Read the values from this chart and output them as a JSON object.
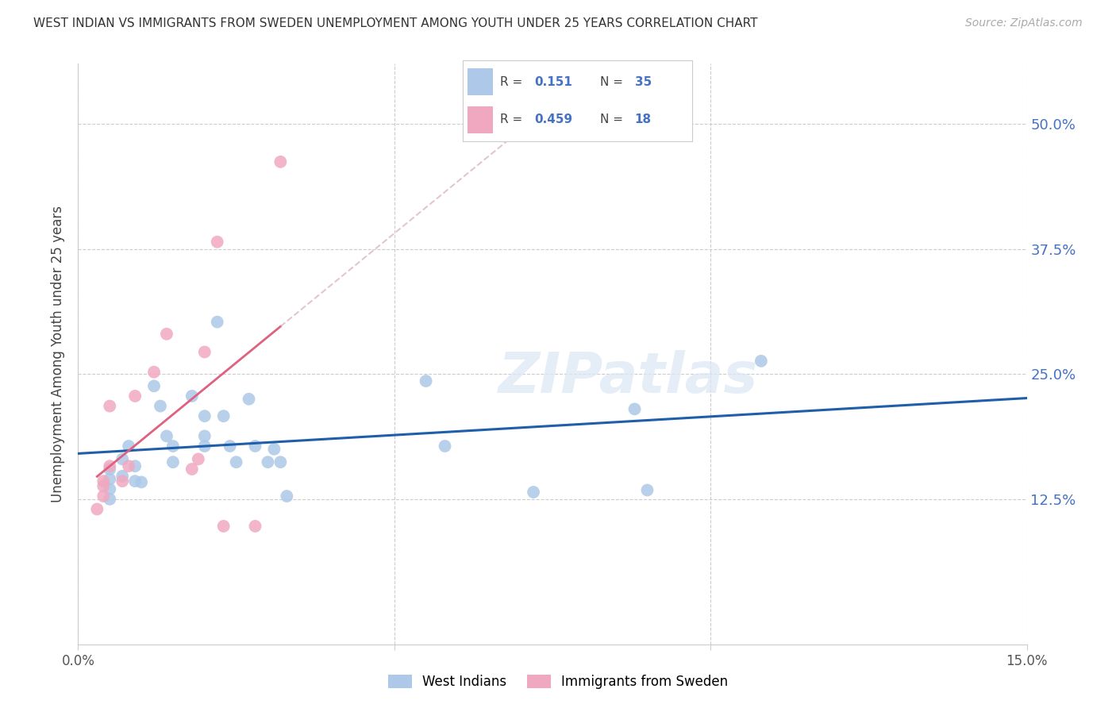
{
  "title": "WEST INDIAN VS IMMIGRANTS FROM SWEDEN UNEMPLOYMENT AMONG YOUTH UNDER 25 YEARS CORRELATION CHART",
  "source": "Source: ZipAtlas.com",
  "ylabel": "Unemployment Among Youth under 25 years",
  "watermark": "ZIPatlas",
  "legend_r_blue": "0.151",
  "legend_n_blue": "35",
  "legend_r_pink": "0.459",
  "legend_n_pink": "18",
  "blue_color": "#adc8e8",
  "pink_color": "#f0a8c0",
  "blue_line_color": "#1f5faa",
  "pink_line_color": "#e06080",
  "pink_line_dash_color": "#d0a0b0",
  "right_tick_color": "#4472c4",
  "xlim": [
    0.0,
    0.15
  ],
  "ylim": [
    -0.02,
    0.56
  ],
  "ytick_positions": [
    0.125,
    0.25,
    0.375,
    0.5
  ],
  "ytick_labels": [
    "12.5%",
    "25.0%",
    "37.5%",
    "50.0%"
  ],
  "xtick_positions": [
    0.0,
    0.05,
    0.1,
    0.15
  ],
  "xtick_labels": [
    "0.0%",
    "",
    "",
    "15.0%"
  ],
  "blue_scatter": [
    [
      0.005,
      0.155
    ],
    [
      0.005,
      0.145
    ],
    [
      0.005,
      0.135
    ],
    [
      0.005,
      0.125
    ],
    [
      0.007,
      0.165
    ],
    [
      0.007,
      0.148
    ],
    [
      0.008,
      0.178
    ],
    [
      0.009,
      0.158
    ],
    [
      0.009,
      0.143
    ],
    [
      0.01,
      0.142
    ],
    [
      0.012,
      0.238
    ],
    [
      0.013,
      0.218
    ],
    [
      0.014,
      0.188
    ],
    [
      0.015,
      0.178
    ],
    [
      0.015,
      0.162
    ],
    [
      0.018,
      0.228
    ],
    [
      0.02,
      0.208
    ],
    [
      0.02,
      0.188
    ],
    [
      0.02,
      0.178
    ],
    [
      0.022,
      0.302
    ],
    [
      0.023,
      0.208
    ],
    [
      0.024,
      0.178
    ],
    [
      0.025,
      0.162
    ],
    [
      0.027,
      0.225
    ],
    [
      0.028,
      0.178
    ],
    [
      0.03,
      0.162
    ],
    [
      0.031,
      0.175
    ],
    [
      0.032,
      0.162
    ],
    [
      0.033,
      0.128
    ],
    [
      0.055,
      0.243
    ],
    [
      0.058,
      0.178
    ],
    [
      0.072,
      0.132
    ],
    [
      0.088,
      0.215
    ],
    [
      0.09,
      0.134
    ],
    [
      0.108,
      0.263
    ]
  ],
  "pink_scatter": [
    [
      0.003,
      0.115
    ],
    [
      0.004,
      0.128
    ],
    [
      0.004,
      0.138
    ],
    [
      0.004,
      0.143
    ],
    [
      0.005,
      0.158
    ],
    [
      0.005,
      0.218
    ],
    [
      0.007,
      0.143
    ],
    [
      0.008,
      0.158
    ],
    [
      0.009,
      0.228
    ],
    [
      0.012,
      0.252
    ],
    [
      0.014,
      0.29
    ],
    [
      0.018,
      0.155
    ],
    [
      0.019,
      0.165
    ],
    [
      0.02,
      0.272
    ],
    [
      0.022,
      0.382
    ],
    [
      0.023,
      0.098
    ],
    [
      0.028,
      0.098
    ],
    [
      0.032,
      0.462
    ]
  ]
}
